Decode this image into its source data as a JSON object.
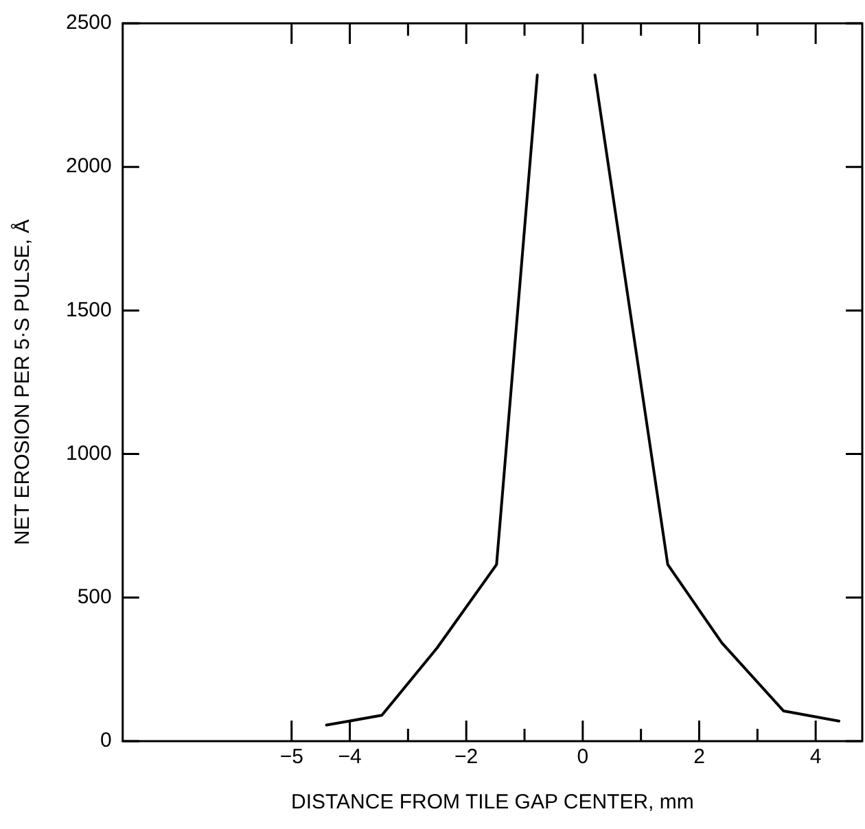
{
  "chart_data": {
    "type": "line",
    "xlabel": "DISTANCE FROM TILE GAP CENTER, mm",
    "ylabel": "NET EROSION PER 5·S PULSE, Å",
    "x": [
      -4.4,
      -3.45,
      -2.5,
      -1.48,
      -0.78,
      -0.3,
      0.21,
      1.46,
      2.39,
      3.45,
      4.4
    ],
    "series": [
      {
        "color": "#000000",
        "values": [
          56,
          90,
          325,
          615,
          2320,
          null,
          2320,
          615,
          342,
          105,
          70
        ]
      }
    ],
    "xlim": [
      -7.9,
      4.8
    ],
    "ylim": [
      0,
      2500
    ],
    "xticks": [
      -5,
      -4,
      {
        "value": -3,
        "label": null
      },
      -2,
      {
        "value": -1,
        "label": null
      },
      0,
      {
        "value": 1,
        "label": null
      },
      2,
      {
        "value": 3,
        "label": null
      },
      4
    ],
    "yticks": [
      0,
      500,
      1000,
      1500,
      2000,
      2500
    ],
    "grid": false,
    "legend": false,
    "marker": "none",
    "line_style": "solid"
  }
}
